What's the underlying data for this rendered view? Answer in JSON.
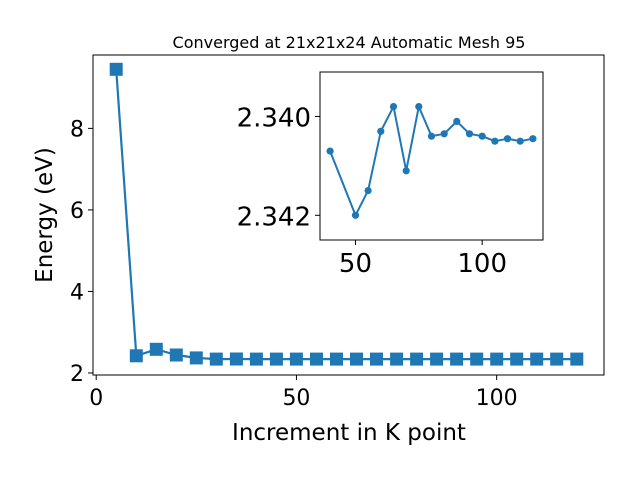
{
  "colors": {
    "series": "#1f77b4",
    "axes": "#000000",
    "background": "#ffffff"
  },
  "chart_data": [
    {
      "type": "line",
      "title": "Converged at 21x21x24 Automatic Mesh 95",
      "xlabel": "Increment in K point",
      "ylabel": "Energy (eV)",
      "xlim": [
        -0.8,
        126.8
      ],
      "ylim": [
        1.95,
        9.8
      ],
      "xticks": [
        0,
        50,
        100
      ],
      "yticks": [
        2,
        4,
        6,
        8
      ],
      "marker": "square",
      "x": [
        5,
        10,
        15,
        20,
        25,
        30,
        35,
        40,
        45,
        50,
        55,
        60,
        65,
        70,
        75,
        80,
        85,
        90,
        95,
        100,
        105,
        110,
        115,
        120
      ],
      "y": [
        9.45,
        2.42,
        2.58,
        2.44,
        2.37,
        2.341,
        2.342,
        2.341,
        2.34,
        2.341,
        2.34,
        2.34,
        2.34,
        2.34,
        2.34,
        2.34,
        2.34,
        2.34,
        2.34,
        2.34,
        2.34,
        2.34,
        2.34,
        2.34
      ],
      "grid": false
    },
    {
      "type": "line",
      "title": "",
      "xlabel": "",
      "ylabel": "",
      "inverted_y": true,
      "xlim": [
        36,
        124
      ],
      "ylim": [
        2.3425,
        2.3391
      ],
      "xticks": [
        50,
        100
      ],
      "ytick_values": [
        2.34,
        2.342
      ],
      "yticks": [
        "2.340",
        "2.342"
      ],
      "marker": "circle",
      "x": [
        40,
        50,
        55,
        60,
        65,
        70,
        75,
        80,
        85,
        90,
        95,
        100,
        105,
        110,
        115,
        120
      ],
      "y": [
        2.3407,
        2.342,
        2.3415,
        2.3403,
        2.3398,
        2.3411,
        2.3398,
        2.3404,
        2.34035,
        2.3401,
        2.34035,
        2.3404,
        2.3405,
        2.34045,
        2.3405,
        2.34045
      ],
      "grid": false
    }
  ]
}
